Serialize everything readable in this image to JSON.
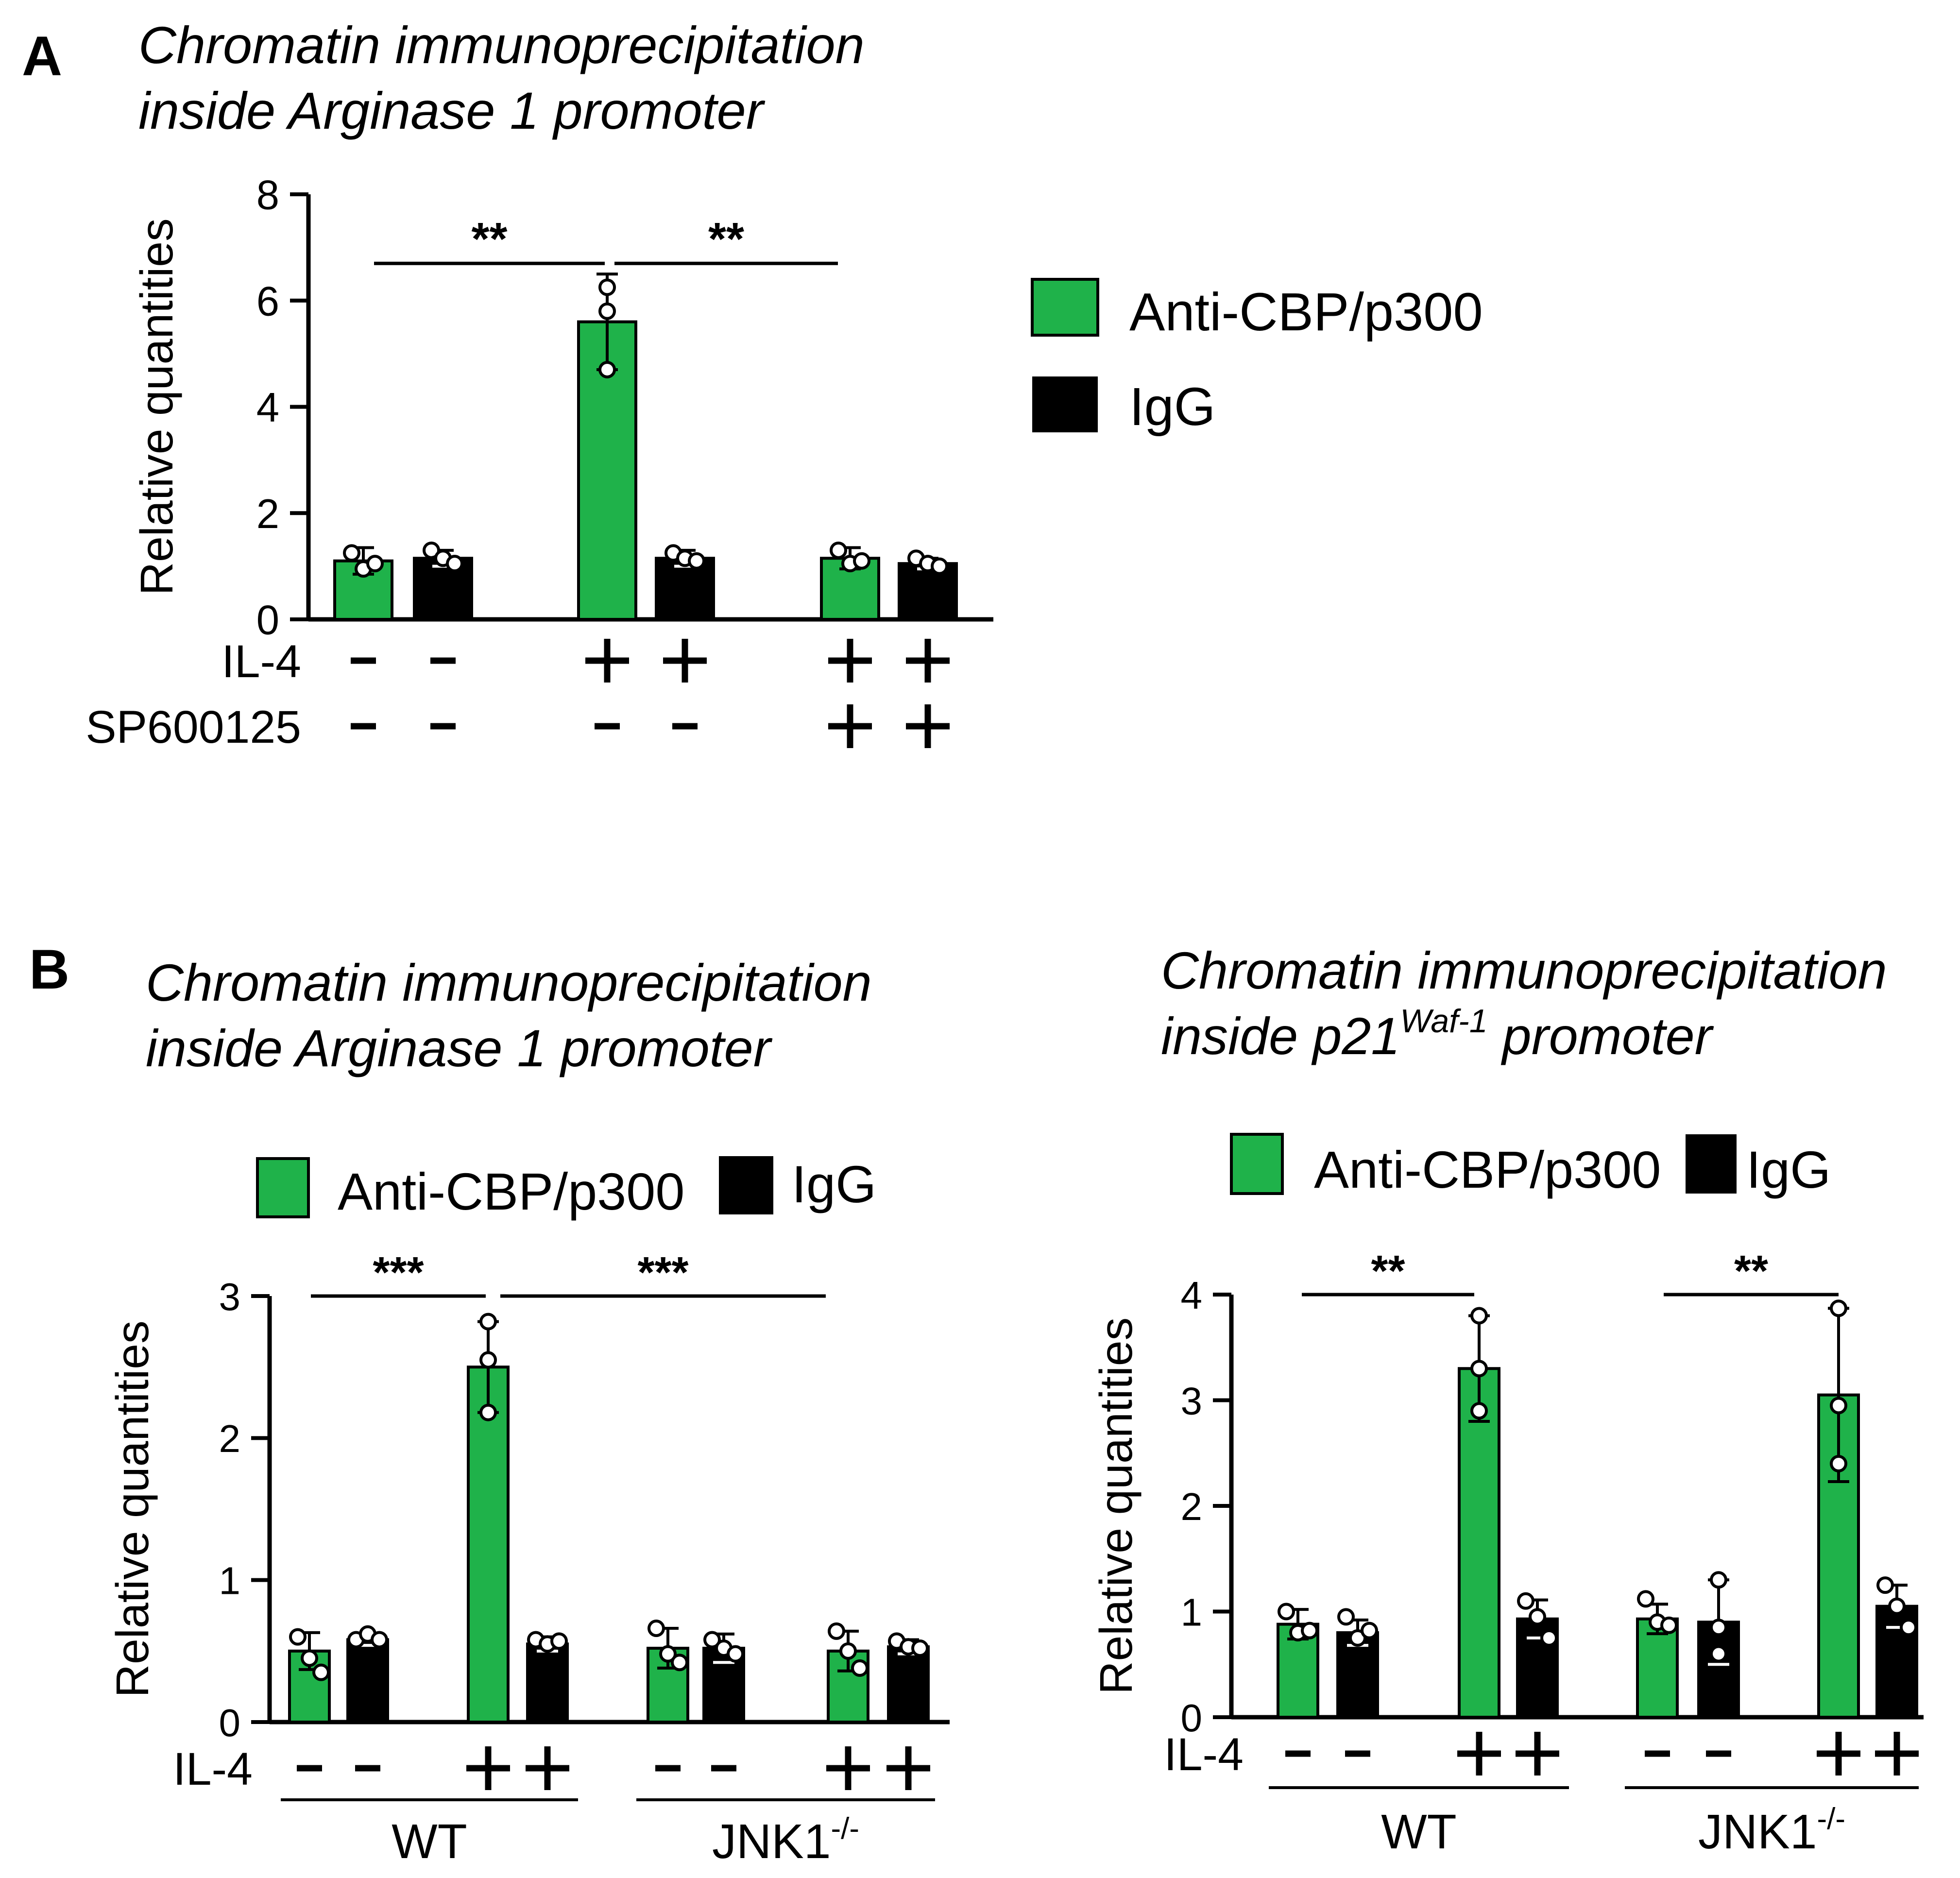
{
  "colors": {
    "green": "#1fb24a",
    "black": "#000000",
    "white": "#ffffff"
  },
  "panel_a": {
    "letter": "A",
    "title_line1": "Chromatin immunoprecipitation",
    "title_line2": "inside Arginase 1 promoter"
  },
  "panel_b": {
    "letter": "B"
  },
  "legend": {
    "anti": "Anti-CBP/p300",
    "igg": "IgG"
  },
  "chart_data": [
    {
      "id": "A",
      "type": "bar",
      "title": "Chromatin immunoprecipitation inside Arginase 1 promoter",
      "ylabel": "Relative quantities",
      "ylim": [
        0,
        8
      ],
      "yticks": [
        0,
        2,
        4,
        6,
        8
      ],
      "legend_position": "right",
      "bars": [
        {
          "series": "Anti-CBP/p300",
          "value": 1.1,
          "err": 0.25,
          "points": [
            1.25,
            0.95,
            1.05
          ]
        },
        {
          "series": "IgG",
          "value": 1.15,
          "err": 0.15,
          "points": [
            1.3,
            1.15,
            1.05
          ]
        },
        {
          "series": "Anti-CBP/p300",
          "value": 5.6,
          "err": 0.9,
          "points": [
            5.8,
            6.25,
            4.7
          ]
        },
        {
          "series": "IgG",
          "value": 1.15,
          "err": 0.15,
          "points": [
            1.25,
            1.15,
            1.1
          ]
        },
        {
          "series": "Anti-CBP/p300",
          "value": 1.15,
          "err": 0.2,
          "points": [
            1.3,
            1.05,
            1.1
          ]
        },
        {
          "series": "IgG",
          "value": 1.05,
          "err": 0.1,
          "points": [
            1.15,
            1.05,
            1.0
          ]
        }
      ],
      "rows": [
        {
          "label": "IL-4",
          "signs": [
            "-",
            "-",
            "+",
            "+",
            "+",
            "+"
          ]
        },
        {
          "label": "SP600125",
          "signs": [
            "-",
            "-",
            "-",
            "-",
            "+",
            "+"
          ]
        }
      ],
      "significance": [
        {
          "from": 0,
          "to": 2,
          "label": "**",
          "y": 6.7
        },
        {
          "from": 2,
          "to": 4,
          "label": "**",
          "y": 6.7
        }
      ]
    },
    {
      "id": "B1",
      "type": "bar",
      "title": "Chromatin immunoprecipitation inside Arginase 1 promoter",
      "ylabel": "Relative quantities",
      "ylim": [
        0,
        3
      ],
      "yticks": [
        0,
        1,
        2,
        3
      ],
      "legend_position": "top",
      "bars": [
        {
          "series": "Anti-CBP/p300",
          "value": 0.5,
          "err": 0.13,
          "points": [
            0.6,
            0.45,
            0.35
          ]
        },
        {
          "series": "IgG",
          "value": 0.58,
          "err": 0.04,
          "points": [
            0.58,
            0.62,
            0.58
          ]
        },
        {
          "series": "Anti-CBP/p300",
          "value": 2.5,
          "err": 0.32,
          "points": [
            2.82,
            2.55,
            2.18
          ]
        },
        {
          "series": "IgG",
          "value": 0.55,
          "err": 0.05,
          "points": [
            0.58,
            0.55,
            0.57
          ]
        },
        {
          "series": "Anti-CBP/p300",
          "value": 0.52,
          "err": 0.14,
          "points": [
            0.66,
            0.48,
            0.42
          ]
        },
        {
          "series": "IgG",
          "value": 0.52,
          "err": 0.1,
          "points": [
            0.58,
            0.52,
            0.48
          ]
        },
        {
          "series": "Anti-CBP/p300",
          "value": 0.5,
          "err": 0.14,
          "points": [
            0.64,
            0.5,
            0.38
          ]
        },
        {
          "series": "IgG",
          "value": 0.53,
          "err": 0.05,
          "points": [
            0.57,
            0.53,
            0.52
          ]
        }
      ],
      "rows": [
        {
          "label": "IL-4",
          "signs": [
            "-",
            "-",
            "+",
            "+",
            "-",
            "-",
            "+",
            "+"
          ]
        }
      ],
      "groups": [
        {
          "label": "WT",
          "sup": "",
          "from": 0,
          "to": 3
        },
        {
          "label": "JNK1",
          "sup": "-/-",
          "from": 4,
          "to": 7
        }
      ],
      "significance": [
        {
          "from": 0,
          "to": 2,
          "label": "***",
          "y": 3.0
        },
        {
          "from": 2,
          "to": 6,
          "label": "***",
          "y": 3.0
        }
      ]
    },
    {
      "id": "B2",
      "type": "bar",
      "title_line1": "Chromatin immunoprecipitation",
      "title_line2_pre": "inside p21",
      "title_line2_sup": "Waf-1",
      "title_line2_post": " promoter",
      "ylabel": "Relative quantities",
      "ylim": [
        0,
        4
      ],
      "yticks": [
        0,
        1,
        2,
        3,
        4
      ],
      "legend_position": "top",
      "bars": [
        {
          "series": "Anti-CBP/p300",
          "value": 0.88,
          "err": 0.14,
          "points": [
            1.0,
            0.8,
            0.82
          ]
        },
        {
          "series": "IgG",
          "value": 0.8,
          "err": 0.12,
          "points": [
            0.95,
            0.75,
            0.82
          ]
        },
        {
          "series": "Anti-CBP/p300",
          "value": 3.3,
          "err": 0.5,
          "points": [
            3.8,
            3.3,
            2.9
          ]
        },
        {
          "series": "IgG",
          "value": 0.93,
          "err": 0.18,
          "points": [
            1.1,
            0.95,
            0.75
          ]
        },
        {
          "series": "Anti-CBP/p300",
          "value": 0.93,
          "err": 0.14,
          "points": [
            1.12,
            0.9,
            0.87
          ]
        },
        {
          "series": "IgG",
          "value": 0.9,
          "err": 0.4,
          "points": [
            1.3,
            0.85,
            0.6
          ]
        },
        {
          "series": "Anti-CBP/p300",
          "value": 3.05,
          "err": 0.82,
          "points": [
            3.87,
            2.95,
            2.4
          ]
        },
        {
          "series": "IgG",
          "value": 1.05,
          "err": 0.2,
          "points": [
            1.25,
            1.05,
            0.85
          ]
        }
      ],
      "rows": [
        {
          "label": "IL-4",
          "signs": [
            "-",
            "-",
            "+",
            "+",
            "-",
            "-",
            "+",
            "+"
          ]
        }
      ],
      "groups": [
        {
          "label": "WT",
          "sup": "",
          "from": 0,
          "to": 3
        },
        {
          "label": "JNK1",
          "sup": "-/-",
          "from": 4,
          "to": 7
        }
      ],
      "significance": [
        {
          "from": 0,
          "to": 2,
          "label": "**",
          "y": 4.0
        },
        {
          "from": 4,
          "to": 6,
          "label": "**",
          "y": 4.0
        }
      ]
    }
  ]
}
